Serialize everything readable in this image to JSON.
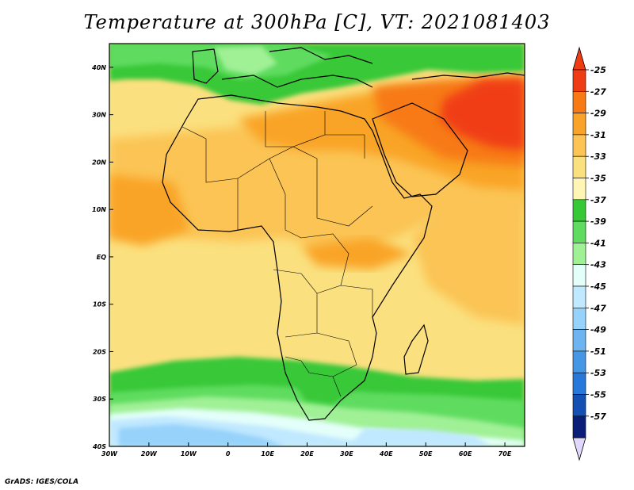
{
  "title": "Temperature at 300hPa [C], VT: 2021081403",
  "credit": "GrADS: IGES/COLA",
  "map": {
    "lat_labels": [
      "40N",
      "30N",
      "20N",
      "10N",
      "EQ",
      "10S",
      "20S",
      "30S",
      "40S"
    ],
    "lon_labels": [
      "30W",
      "20W",
      "10W",
      "0",
      "10E",
      "20E",
      "30E",
      "40E",
      "50E",
      "60E",
      "70E"
    ],
    "extent": {
      "lon_min": -30,
      "lon_max": 75,
      "lat_min": -40,
      "lat_max": 45
    }
  },
  "colorbar": {
    "labels": [
      "-25",
      "-27",
      "-29",
      "-31",
      "-33",
      "-35",
      "-37",
      "-39",
      "-41",
      "-43",
      "-45",
      "-47",
      "-49",
      "-51",
      "-53",
      "-55",
      "-57"
    ],
    "colors": [
      "#f03c14",
      "#f77a14",
      "#f9a428",
      "#fbc454",
      "#fbe07f",
      "#fff5b4",
      "#37c837",
      "#5fdc5f",
      "#a0f096",
      "#e4fffa",
      "#c0e8ff",
      "#96d2fa",
      "#6eb4f0",
      "#4696e6",
      "#2878dc",
      "#1450b4",
      "#0a1e78"
    ],
    "end_top_color": "#f03c14",
    "end_bottom_color": "#e0d8ff"
  }
}
